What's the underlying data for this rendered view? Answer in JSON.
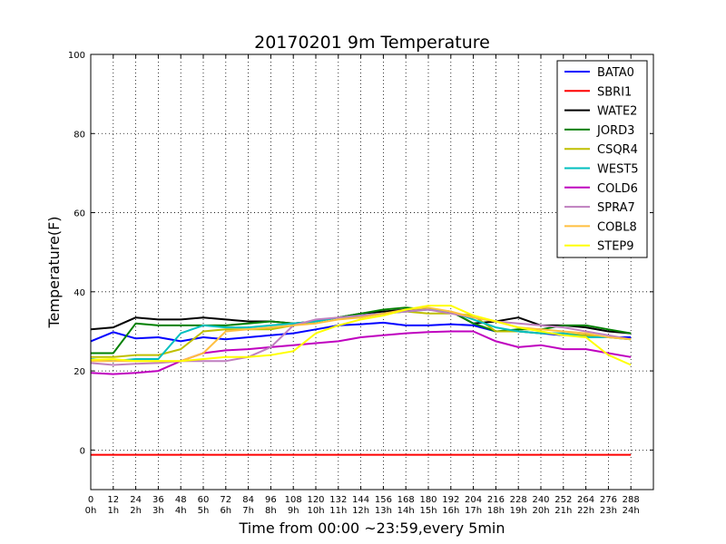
{
  "chart_data": {
    "type": "line",
    "title": "20170201 9m Temperature",
    "xlabel": "Time from 00:00 ~23:59,every 5min",
    "ylabel": "Temperature(F)",
    "xlim": [
      0,
      300
    ],
    "ylim": [
      -10,
      100
    ],
    "grid": true,
    "grid_style": "dotted",
    "legend_position": "top-right",
    "xtick_values": [
      0,
      12,
      24,
      36,
      48,
      60,
      72,
      84,
      96,
      108,
      120,
      132,
      144,
      156,
      168,
      180,
      192,
      204,
      216,
      228,
      240,
      252,
      264,
      276,
      288
    ],
    "xtick_labels": [
      "0",
      "12",
      "24",
      "36",
      "48",
      "60",
      "72",
      "84",
      "96",
      "108",
      "120",
      "132",
      "144",
      "156",
      "168",
      "180",
      "192",
      "204",
      "216",
      "228",
      "240",
      "252",
      "264",
      "276",
      "288"
    ],
    "xtick_sublabels": [
      "0h",
      "1h",
      "2h",
      "3h",
      "4h",
      "5h",
      "6h",
      "7h",
      "8h",
      "9h",
      "10h",
      "11h",
      "12h",
      "13h",
      "14h",
      "15h",
      "16h",
      "17h",
      "18h",
      "19h",
      "20h",
      "21h",
      "22h",
      "23h",
      "24h"
    ],
    "ytick_values": [
      0,
      20,
      40,
      60,
      80,
      100
    ],
    "ytick_labels": [
      "0",
      "20",
      "40",
      "60",
      "80",
      "100"
    ],
    "x": [
      0,
      12,
      24,
      36,
      48,
      60,
      72,
      84,
      96,
      108,
      120,
      132,
      144,
      156,
      168,
      180,
      192,
      204,
      216,
      228,
      240,
      252,
      264,
      276,
      288
    ],
    "series": [
      {
        "name": "BATA0",
        "color": "#0000ff",
        "values": [
          27.5,
          29.8,
          28.2,
          28.5,
          27.5,
          28.5,
          28,
          28.5,
          29,
          29.5,
          30.5,
          31.5,
          31.8,
          32.2,
          31.5,
          31.5,
          31.8,
          31.5,
          30,
          30,
          29.5,
          29,
          29,
          28.5,
          28.5
        ]
      },
      {
        "name": "SBRI1",
        "color": "#ff0000",
        "values": [
          -1.2,
          -1.2,
          -1.2,
          -1.2,
          -1.2,
          -1.2,
          -1.2,
          -1.2,
          -1.2,
          -1.2,
          -1.2,
          -1.2,
          -1.2,
          -1.2,
          -1.2,
          -1.2,
          -1.2,
          -1.2,
          -1.2,
          -1.2,
          -1.2,
          -1.2,
          -1.2,
          -1.2,
          -1.2
        ]
      },
      {
        "name": "WATE2",
        "color": "#000000",
        "values": [
          30.5,
          31,
          33.5,
          33,
          33,
          33.5,
          33,
          32.5,
          32.5,
          32,
          32.5,
          33.5,
          34.5,
          35,
          35.5,
          35.5,
          35,
          32,
          32.5,
          33.5,
          31.5,
          31.5,
          31,
          30,
          29.5
        ]
      },
      {
        "name": "JORD3",
        "color": "#008000",
        "values": [
          24.5,
          24.5,
          32,
          31.5,
          31.5,
          31.5,
          31.5,
          32,
          32.5,
          32,
          32.5,
          33.5,
          34.5,
          35.5,
          36,
          35.5,
          35,
          32,
          30,
          30.5,
          30.5,
          31.5,
          31.5,
          30.5,
          29.5
        ]
      },
      {
        "name": "CSQR4",
        "color": "#bfbf00",
        "values": [
          23.5,
          23.5,
          24,
          24,
          25.5,
          30,
          30.5,
          30.5,
          30.5,
          31.5,
          32.5,
          33.5,
          33.5,
          34.5,
          35,
          34.5,
          34.5,
          34,
          30,
          30,
          29.5,
          29.5,
          29,
          28.5,
          28
        ]
      },
      {
        "name": "WEST5",
        "color": "#00bfbf",
        "values": [
          23,
          22.5,
          23,
          23,
          29.5,
          31.5,
          31,
          31,
          31.5,
          32,
          32.5,
          33.5,
          34,
          34.5,
          35,
          35.5,
          35,
          33,
          31,
          30,
          29.5,
          29.5,
          28.5,
          28.5,
          28
        ]
      },
      {
        "name": "COLD6",
        "color": "#bf00bf",
        "values": [
          19.5,
          19.2,
          19.5,
          20,
          22.5,
          24.5,
          25.2,
          25.5,
          26,
          26.5,
          27,
          27.5,
          28.5,
          29,
          29.5,
          29.8,
          30,
          30,
          27.5,
          26,
          26.5,
          25.5,
          25.5,
          24.5,
          23.5
        ]
      },
      {
        "name": "SPRA7",
        "color": "#bf7fbf",
        "values": [
          22,
          21.5,
          21.8,
          22,
          22.5,
          22.5,
          22.5,
          23.5,
          26,
          31.5,
          33,
          33.5,
          34,
          34.5,
          35,
          35.5,
          34.5,
          33.5,
          32.5,
          32,
          31.5,
          31,
          30,
          29,
          28
        ]
      },
      {
        "name": "COBL8",
        "color": "#ffbf40",
        "values": [
          22.5,
          22.5,
          22.5,
          22.5,
          22.5,
          24.5,
          30,
          30.5,
          31,
          31.5,
          32,
          33,
          33.5,
          34.5,
          35.5,
          36,
          35,
          33.5,
          32.5,
          31,
          30.5,
          30,
          29.5,
          28.5,
          28
        ]
      },
      {
        "name": "STEP9",
        "color": "#ffff00",
        "values": [
          22.8,
          23,
          22.5,
          22.5,
          22.5,
          23,
          23.5,
          23.5,
          24,
          25,
          29.5,
          31.5,
          33,
          34,
          35.5,
          36.5,
          36.5,
          34,
          32.5,
          31,
          30,
          29,
          28.5,
          24,
          21.5
        ]
      }
    ]
  }
}
